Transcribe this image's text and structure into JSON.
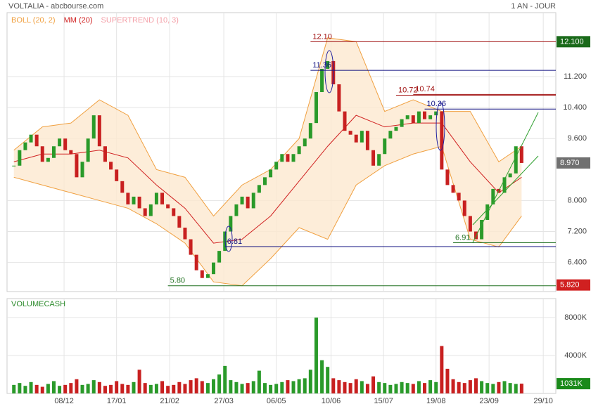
{
  "chart_data": {
    "type": "candlestick",
    "title": "VOLTALIA - abcbourse.com",
    "period": "1 AN - JOUR",
    "indicators": [
      {
        "name": "BOLL (20, 2)",
        "color": "#f0a040"
      },
      {
        "name": "MM (20)",
        "color": "#d02020"
      },
      {
        "name": "SUPERTREND (10, 3)",
        "color": "#f4a0a8"
      }
    ],
    "xlim": [
      -1.2,
      95
    ],
    "xticks": [
      {
        "value": 8.8,
        "label": "08/12"
      },
      {
        "value": 18,
        "label": "17/01"
      },
      {
        "value": 27.3,
        "label": "21/02"
      },
      {
        "value": 36.8,
        "label": "27/03"
      },
      {
        "value": 46,
        "label": "06/05"
      },
      {
        "value": 55.6,
        "label": "10/06"
      },
      {
        "value": 64.8,
        "label": "15/07"
      },
      {
        "value": 74,
        "label": "19/08"
      },
      {
        "value": 83.3,
        "label": "23/09"
      },
      {
        "value": 92.8,
        "label": "29/10"
      }
    ],
    "ylim": [
      5.65,
      12.85
    ],
    "yticks": [
      {
        "value": 11.2,
        "label": "11.200"
      },
      {
        "value": 10.4,
        "label": "10.400"
      },
      {
        "value": 9.6,
        "label": "9.600"
      },
      {
        "value": 8.0,
        "label": "8.000"
      },
      {
        "value": 7.2,
        "label": "7.200"
      },
      {
        "value": 6.4,
        "label": "6.400"
      }
    ],
    "close": [
      8.9,
      9.3,
      9.5,
      9.7,
      9.4,
      9.0,
      9.1,
      9.4,
      9.6,
      9.3,
      9.2,
      8.6,
      9.0,
      9.6,
      10.2,
      9.4,
      9.0,
      8.8,
      8.5,
      8.2,
      7.9,
      8.1,
      7.8,
      7.6,
      7.9,
      8.2,
      7.9,
      7.8,
      7.6,
      7.3,
      7.0,
      6.6,
      6.2,
      6.0,
      6.1,
      6.4,
      6.7,
      7.2,
      7.6,
      7.9,
      8.1,
      7.8,
      8.2,
      8.4,
      8.6,
      8.8,
      9.0,
      9.2,
      9.0,
      9.2,
      9.4,
      9.6,
      10.0,
      10.8,
      11.4,
      11.6,
      11.0,
      10.3,
      9.8,
      9.7,
      9.5,
      9.8,
      9.3,
      8.9,
      9.2,
      9.6,
      9.8,
      9.9,
      10.1,
      10.2,
      10.0,
      10.3,
      10.1,
      10.2,
      10.3,
      8.8,
      8.4,
      8.2,
      8.0,
      7.6,
      7.2,
      7.0,
      7.5,
      7.9,
      8.3,
      8.2,
      8.6,
      8.7,
      9.4,
      8.97
    ],
    "up_color": "#2a9a2a",
    "down_color": "#c82020",
    "overlay_x": [
      0,
      5,
      10,
      15,
      20,
      25,
      30,
      35,
      40,
      45,
      50,
      55,
      60,
      65,
      70,
      75,
      80,
      85,
      89
    ],
    "boll_upper": [
      9.3,
      9.9,
      10.0,
      10.6,
      10.2,
      8.8,
      8.6,
      7.6,
      8.4,
      8.8,
      9.6,
      12.2,
      12.1,
      10.3,
      10.6,
      10.3,
      10.3,
      9.0,
      9.4
    ],
    "boll_lower": [
      8.6,
      8.4,
      8.2,
      8.0,
      7.8,
      7.4,
      6.9,
      5.9,
      5.8,
      6.5,
      7.3,
      7.0,
      8.4,
      8.9,
      9.2,
      9.4,
      7.0,
      6.8,
      7.6
    ],
    "mm": [
      9.0,
      9.2,
      9.2,
      9.3,
      9.1,
      8.4,
      7.8,
      6.9,
      7.0,
      7.6,
      8.5,
      9.4,
      10.2,
      9.9,
      10.0,
      10.0,
      9.0,
      8.2,
      8.6
    ],
    "levels": [
      {
        "value": 12.1,
        "label": "12.10",
        "color": "#a01010",
        "x": 52
      },
      {
        "value": 11.36,
        "label": "11.36",
        "color": "#101080",
        "x": 52
      },
      {
        "value": 10.72,
        "label": "10.72",
        "color": "#a01010",
        "x": 67
      },
      {
        "value": 10.74,
        "label": "10.74",
        "color": "#a01010",
        "x": 70
      },
      {
        "value": 10.36,
        "label": "10.36",
        "color": "#101080",
        "x": 72
      },
      {
        "value": 6.81,
        "label": "6.81",
        "color": "#101080",
        "x": 37
      },
      {
        "value": 6.91,
        "label": "6.91",
        "color": "#207020",
        "x": 77
      },
      {
        "value": 5.8,
        "label": "5.80",
        "color": "#207020",
        "x": 27
      }
    ],
    "price_tags": [
      {
        "value": 12.1,
        "label": "12.100",
        "color": "#1a6a1a"
      },
      {
        "value": 8.97,
        "label": "8.970",
        "color": "#707070"
      },
      {
        "value": 5.82,
        "label": "5.820",
        "color": "#d02020"
      }
    ],
    "volume": {
      "title": "VOLUMECASH",
      "values": [
        900,
        1100,
        800,
        1200,
        900,
        700,
        1000,
        1300,
        800,
        900,
        1100,
        1500,
        900,
        1000,
        1400,
        1200,
        800,
        900,
        1300,
        1000,
        900,
        1200,
        2500,
        1100,
        900,
        1000,
        1300,
        800,
        900,
        1200,
        1000,
        1400,
        1600,
        1300,
        1100,
        1500,
        2000,
        2900,
        1400,
        1200,
        1000,
        1100,
        1300,
        2400,
        1100,
        900,
        1000,
        1200,
        1400,
        1300,
        1500,
        1600,
        2500,
        8000,
        3500,
        2800,
        1600,
        1400,
        1200,
        1100,
        1500,
        1300,
        1000,
        1800,
        1200,
        1100,
        900,
        1000,
        1200,
        1100,
        1000,
        1300,
        1100,
        1400,
        1200,
        5000,
        2600,
        1500,
        1200,
        1100,
        1400,
        1600,
        1300,
        1100,
        1000,
        1200,
        1300,
        1100,
        1000,
        1031
      ],
      "ylim": [
        0,
        10000
      ],
      "yticks": [
        {
          "value": 4000,
          "label": "4000K"
        },
        {
          "value": 8000,
          "label": "8000K"
        }
      ],
      "tag": {
        "value": 1031,
        "label": "1031K",
        "color": "#1a8a1a"
      }
    }
  }
}
